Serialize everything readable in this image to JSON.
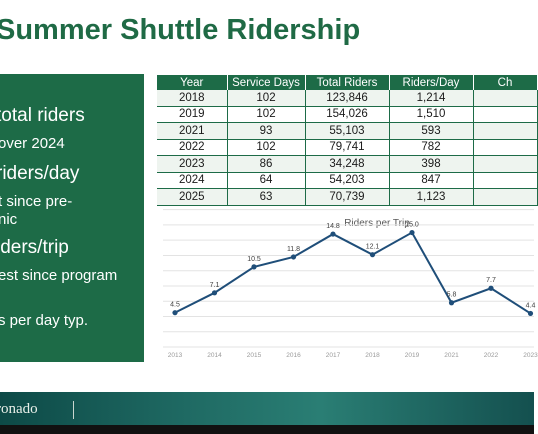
{
  "title": "Summer Shuttle Ridership",
  "highlights": {
    "h1": "total riders",
    "s1": "over 2024",
    "h2": "riders/day",
    "s2a": "t since pre-",
    "s2b": "nic",
    "h3": "iders/trip",
    "s3": "est since program",
    "s4": "s per day typ."
  },
  "table": {
    "headers": [
      "Year",
      "Service Days",
      "Total Riders",
      "Riders/Day",
      "Ch"
    ],
    "rows": [
      [
        "2018",
        "102",
        "123,846",
        "1,214",
        ""
      ],
      [
        "2019",
        "102",
        "154,026",
        "1,510",
        ""
      ],
      [
        "2021",
        "93",
        "55,103",
        "593",
        ""
      ],
      [
        "2022",
        "102",
        "79,741",
        "782",
        ""
      ],
      [
        "2023",
        "86",
        "34,248",
        "398",
        ""
      ],
      [
        "2024",
        "64",
        "54,203",
        "847",
        ""
      ],
      [
        "2025",
        "63",
        "70,739",
        "1,123",
        ""
      ]
    ]
  },
  "chart_data": {
    "type": "line",
    "title": "Riders per Trip",
    "xlabel": "",
    "ylabel": "",
    "x": [
      "2013",
      "2014",
      "2015",
      "2016",
      "2017",
      "2018",
      "2019",
      "2021",
      "2022",
      "2023"
    ],
    "series": [
      {
        "values": [
          4.5,
          7.1,
          10.5,
          11.8,
          14.8,
          12.1,
          15.0,
          5.8,
          7.7,
          4.4
        ]
      }
    ],
    "data_labels": [
      "4.5",
      "7.1",
      "10.5",
      "11.8",
      "14.8",
      "12.1",
      "15.0",
      "5.8",
      "7.7",
      "4.4"
    ],
    "ylim": [
      0,
      18
    ],
    "grid": true,
    "line_color": "#1f4e79"
  },
  "footer": {
    "logo_text": "ronado"
  }
}
